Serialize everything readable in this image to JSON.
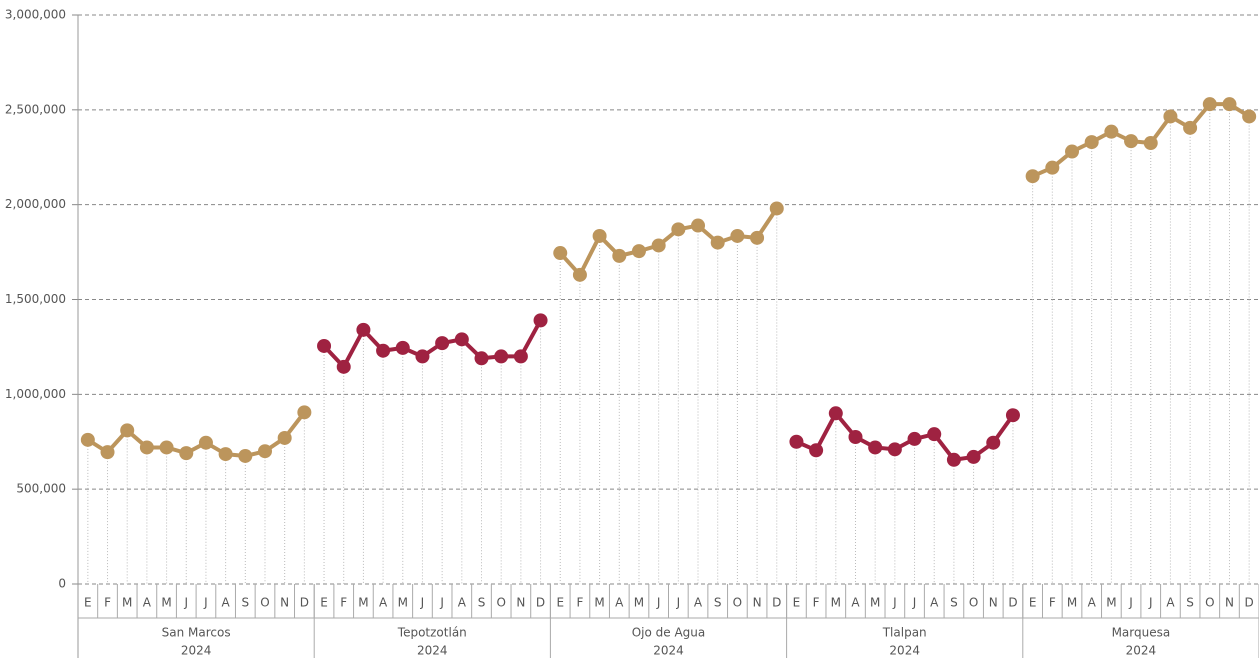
{
  "chart_data": {
    "type": "line",
    "categories": [
      "E",
      "F",
      "M",
      "A",
      "M",
      "J",
      "J",
      "A",
      "S",
      "O",
      "N",
      "D"
    ],
    "series": [
      {
        "name": "San Marcos",
        "year": "2024",
        "color": "#bc955c",
        "values": [
          760000,
          695000,
          810000,
          720000,
          720000,
          690000,
          745000,
          685000,
          675000,
          700000,
          770000,
          905000
        ]
      },
      {
        "name": "Tepotzotlán",
        "year": "2024",
        "color": "#9f2241",
        "values": [
          1255000,
          1145000,
          1340000,
          1230000,
          1245000,
          1200000,
          1270000,
          1290000,
          1190000,
          1200000,
          1200000,
          1390000
        ]
      },
      {
        "name": "Ojo de Agua",
        "year": "2024",
        "color": "#bc955c",
        "values": [
          1745000,
          1630000,
          1835000,
          1730000,
          1755000,
          1785000,
          1870000,
          1890000,
          1800000,
          1835000,
          1825000,
          1980000
        ]
      },
      {
        "name": "Tlalpan",
        "year": "2024",
        "color": "#9f2241",
        "values": [
          750000,
          705000,
          900000,
          775000,
          720000,
          710000,
          765000,
          790000,
          655000,
          670000,
          745000,
          890000
        ]
      },
      {
        "name": "Marquesa",
        "year": "2024",
        "color": "#bc955c",
        "values": [
          2150000,
          2195000,
          2280000,
          2330000,
          2385000,
          2335000,
          2325000,
          2465000,
          2405000,
          2530000,
          2530000,
          2465000
        ]
      }
    ],
    "ylim": [
      0,
      3000000
    ],
    "yticks": [
      0,
      {
        "value": 500000,
        "label": "500,000"
      },
      {
        "value": 1000000,
        "label": "1,000,000"
      },
      {
        "value": 1500000,
        "label": "1,500,000"
      },
      {
        "value": 2000000,
        "label": "2,000,000"
      },
      {
        "value": 2500000,
        "label": "2,500,000"
      },
      {
        "value": 3000000,
        "label": "3,000,000"
      }
    ],
    "grid": true
  }
}
